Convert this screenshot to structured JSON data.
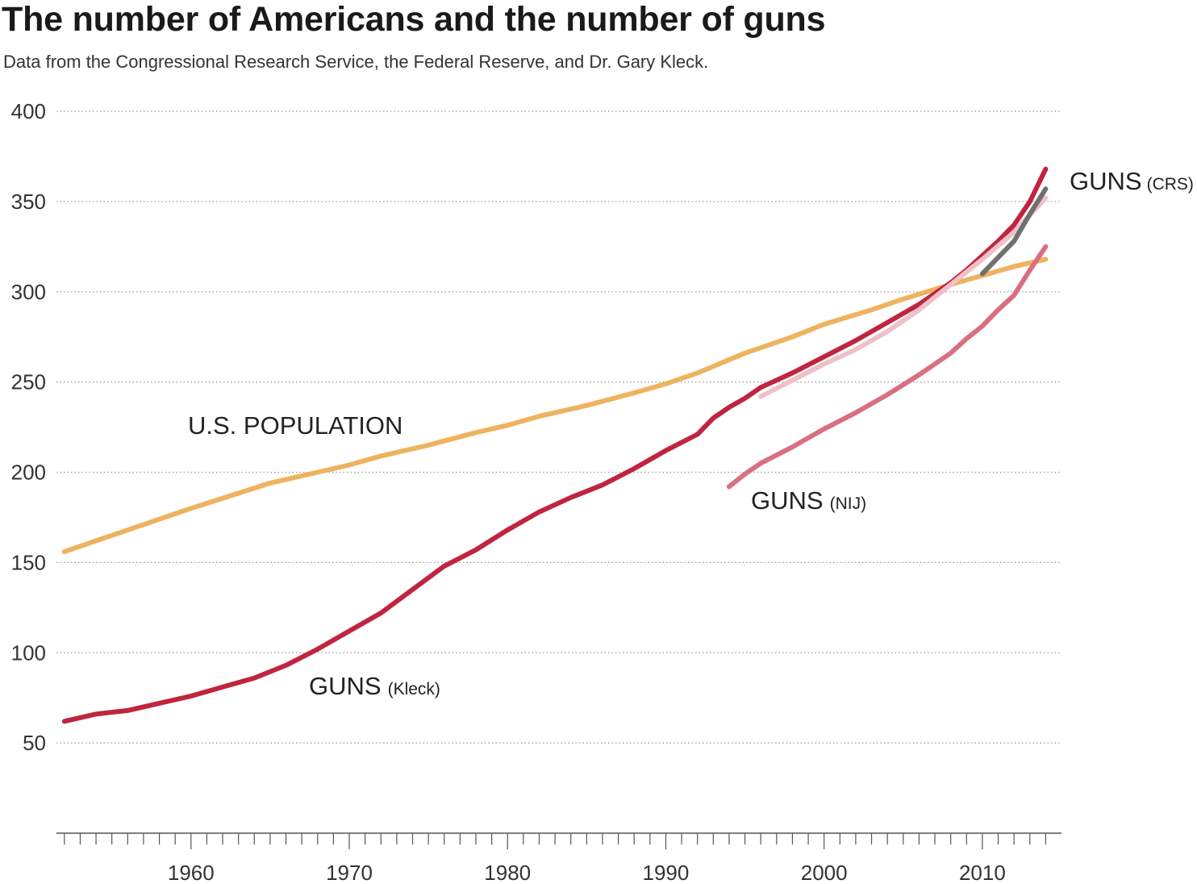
{
  "title": "The number of Americans and the number of guns",
  "subtitle": "Data from the Congressional Research Service, the Federal Reserve, and Dr. Gary Kleck.",
  "chart_data": {
    "type": "line",
    "title": "The number of Americans and the number of guns",
    "xlabel": "",
    "ylabel": "",
    "xlim": [
      1951.5,
      2015
    ],
    "ylim": [
      0,
      400
    ],
    "y_ticks": [
      50,
      100,
      150,
      200,
      250,
      300,
      350,
      400
    ],
    "y_tick_labels": [
      "50",
      "100",
      "150",
      "200",
      "250",
      "300",
      "350",
      "400"
    ],
    "x_ticks": [
      1960,
      1970,
      1980,
      1990,
      2000,
      2010
    ],
    "x_tick_labels": [
      "1960",
      "1970",
      "1980",
      "1990",
      "2000",
      "2010"
    ],
    "x_minor_tick_start": 1952,
    "x_minor_tick_end": 2014,
    "grid": "horizontal dotted",
    "series": [
      {
        "name": "U.S. POPULATION",
        "color": "#EDB35E",
        "x": [
          1952,
          1955,
          1958,
          1960,
          1965,
          1968,
          1970,
          1972,
          1975,
          1978,
          1980,
          1982,
          1985,
          1988,
          1990,
          1992,
          1995,
          1998,
          2000,
          2003,
          2005,
          2008,
          2010,
          2012,
          2014
        ],
        "values": [
          156,
          165,
          174,
          180,
          194,
          200,
          204,
          209,
          215,
          222,
          226,
          231,
          237,
          244,
          249,
          255,
          266,
          275,
          282,
          290,
          296,
          304,
          309,
          314,
          318
        ]
      },
      {
        "name": "GUNS (Kleck)",
        "color": "#C0253E",
        "x": [
          1952,
          1954,
          1956,
          1958,
          1960,
          1962,
          1964,
          1966,
          1968,
          1970,
          1972,
          1974,
          1976,
          1978,
          1980,
          1982,
          1984,
          1986,
          1988,
          1990,
          1992,
          1993,
          1994,
          1995,
          1996,
          1998,
          2000,
          2002,
          2004,
          2006,
          2008,
          2009,
          2010,
          2011,
          2012,
          2013,
          2014
        ],
        "values": [
          62,
          66,
          68,
          72,
          76,
          81,
          86,
          93,
          102,
          112,
          122,
          135,
          148,
          157,
          168,
          178,
          186,
          193,
          202,
          212,
          221,
          230,
          236,
          241,
          247,
          255,
          264,
          273,
          283,
          293,
          305,
          312,
          320,
          328,
          337,
          350,
          368
        ]
      },
      {
        "name": "GUNS (CRS)",
        "color": "#EFC0C8",
        "x": [
          1996,
          1998,
          2000,
          2002,
          2004,
          2006,
          2008,
          2010,
          2012,
          2014
        ],
        "values": [
          242,
          251,
          260,
          268,
          278,
          290,
          304,
          318,
          333,
          352
        ]
      },
      {
        "name": "GUNS (CRS) recent",
        "color": "#707070",
        "x": [
          2010,
          2011,
          2012,
          2013,
          2014
        ],
        "values": [
          310,
          319,
          328,
          343,
          357
        ]
      },
      {
        "name": "GUNS (NIJ)",
        "color": "#D9707F",
        "x": [
          1994,
          1995,
          1996,
          1998,
          2000,
          2002,
          2004,
          2006,
          2008,
          2009,
          2010,
          2011,
          2012,
          2013,
          2014
        ],
        "values": [
          192,
          199,
          205,
          214,
          224,
          233,
          243,
          254,
          266,
          274,
          281,
          290,
          298,
          312,
          325
        ]
      }
    ],
    "annotations": [
      {
        "main": "U.S. POPULATION",
        "sub": ""
      },
      {
        "main": "GUNS",
        "sub": "(Kleck)"
      },
      {
        "main": "GUNS",
        "sub": "(NIJ)"
      },
      {
        "main": "GUNS",
        "sub": "(CRS)"
      }
    ]
  }
}
